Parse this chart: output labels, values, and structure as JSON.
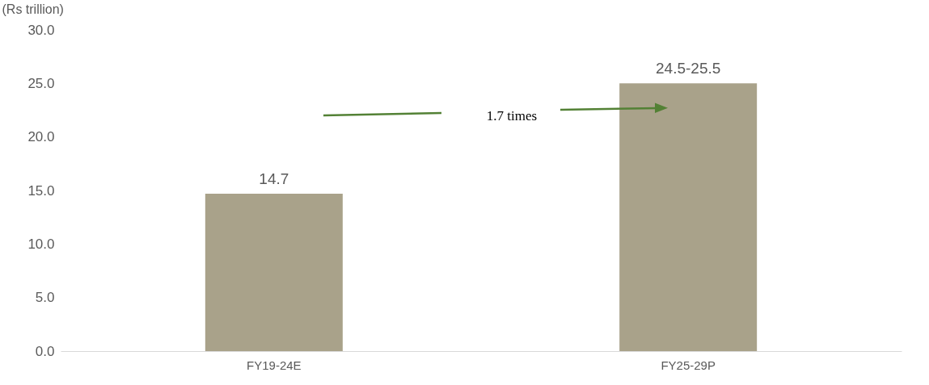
{
  "chart_data": {
    "type": "bar",
    "ylabel": "(Rs trillion)",
    "categories": [
      "FY19-24E",
      "FY25-29P"
    ],
    "values": [
      14.7,
      25
    ],
    "value_labels": [
      "14.7",
      "24.5-25.5"
    ],
    "color": "#a9a28a",
    "ylim": [
      0,
      30
    ],
    "yticks": [
      {
        "value": 0,
        "label": "0.0"
      },
      {
        "value": 5,
        "label": "5.0"
      },
      {
        "value": 10,
        "label": "10.0"
      },
      {
        "value": 15,
        "label": "15.0"
      },
      {
        "value": 20,
        "label": "20.0"
      },
      {
        "value": 25,
        "label": "25.0"
      },
      {
        "value": 30,
        "label": "30.0"
      }
    ],
    "annotations": [
      "1.7 times"
    ],
    "grid": false
  }
}
